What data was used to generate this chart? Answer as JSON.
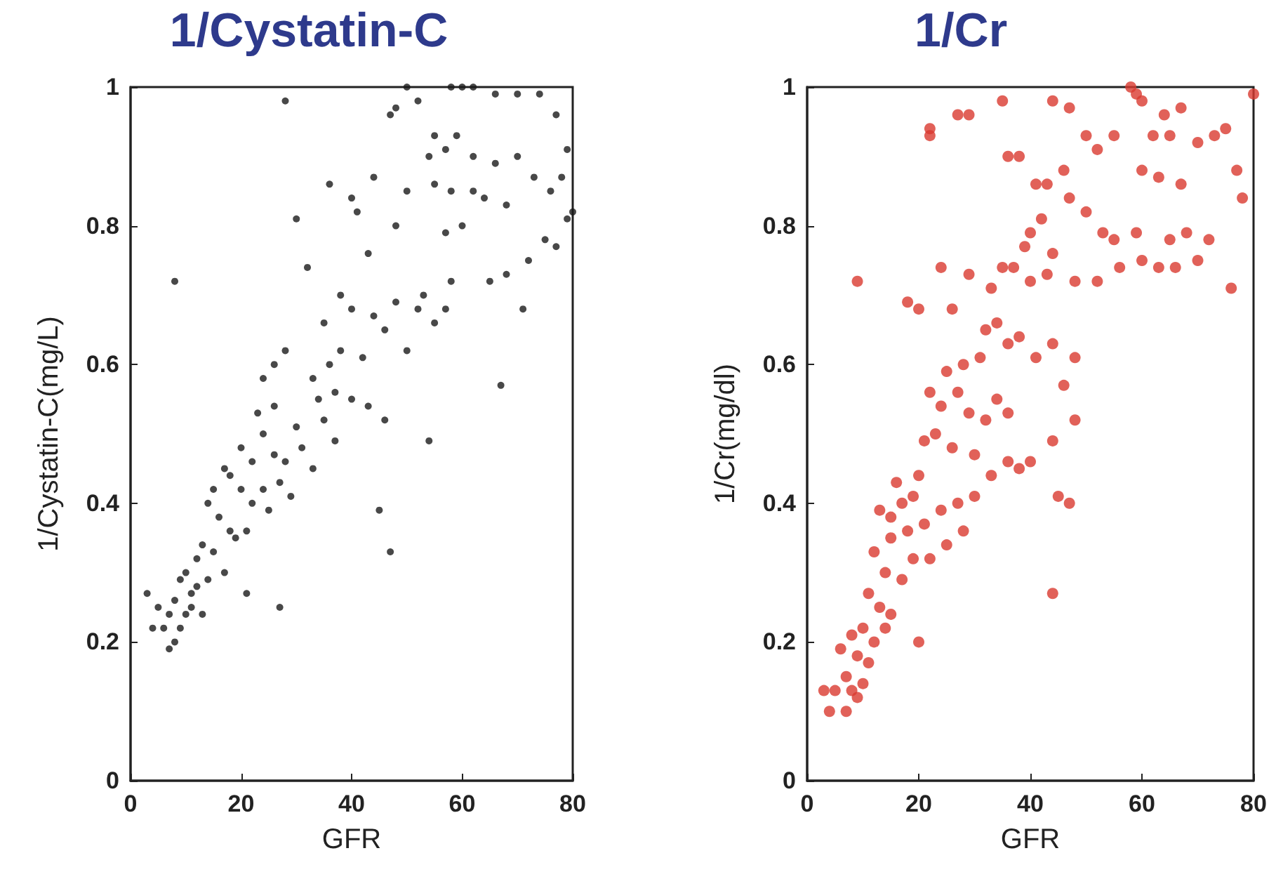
{
  "chart_data": [
    {
      "type": "scatter",
      "title": "1/Cystatin-C",
      "xlabel": "GFR",
      "ylabel": "1/Cystatin-C(mg/L)",
      "xlim": [
        0,
        80
      ],
      "ylim": [
        0,
        1
      ],
      "xticks": [
        0,
        20,
        40,
        60,
        80
      ],
      "yticks": [
        0,
        0.2,
        0.4,
        0.6,
        0.8,
        1
      ],
      "marker": "circle",
      "series": [
        {
          "color": "#1a1a1a",
          "x": [
            8,
            28,
            50,
            52,
            58,
            60,
            62,
            66,
            70,
            74,
            77,
            79,
            48,
            47,
            55,
            57,
            59,
            54,
            62,
            66,
            70,
            73,
            76,
            78,
            80,
            79,
            50,
            55,
            58,
            62,
            64,
            68,
            36,
            40,
            44,
            41,
            30,
            43,
            48,
            57,
            60,
            65,
            68,
            72,
            75,
            77,
            71,
            67,
            54,
            45,
            47,
            27,
            21,
            32,
            35,
            38,
            40,
            44,
            46,
            48,
            52,
            55,
            57,
            58,
            53,
            50,
            42,
            38,
            36,
            33,
            34,
            37,
            40,
            43,
            46,
            28,
            26,
            24,
            23,
            26,
            30,
            31,
            28,
            26,
            24,
            20,
            22,
            18,
            20,
            22,
            24,
            27,
            29,
            25,
            21,
            19,
            16,
            15,
            17,
            14,
            13,
            12,
            15,
            10,
            11,
            9,
            8,
            7,
            6,
            8,
            9,
            10,
            11,
            12,
            5,
            4,
            3,
            7,
            13,
            14,
            17,
            18,
            33,
            35,
            37
          ],
          "values": [
            0.72,
            0.98,
            1.0,
            0.98,
            1.0,
            1.0,
            1.0,
            0.99,
            0.99,
            0.99,
            0.96,
            0.91,
            0.97,
            0.96,
            0.93,
            0.91,
            0.93,
            0.9,
            0.9,
            0.89,
            0.9,
            0.87,
            0.85,
            0.87,
            0.82,
            0.81,
            0.85,
            0.86,
            0.85,
            0.85,
            0.84,
            0.83,
            0.86,
            0.84,
            0.87,
            0.82,
            0.81,
            0.76,
            0.8,
            0.79,
            0.8,
            0.72,
            0.73,
            0.75,
            0.78,
            0.77,
            0.68,
            0.57,
            0.49,
            0.39,
            0.33,
            0.25,
            0.27,
            0.74,
            0.66,
            0.7,
            0.68,
            0.67,
            0.65,
            0.69,
            0.68,
            0.66,
            0.68,
            0.72,
            0.7,
            0.62,
            0.61,
            0.62,
            0.6,
            0.58,
            0.55,
            0.56,
            0.55,
            0.54,
            0.52,
            0.62,
            0.6,
            0.58,
            0.53,
            0.54,
            0.51,
            0.48,
            0.46,
            0.47,
            0.5,
            0.48,
            0.46,
            0.44,
            0.42,
            0.4,
            0.42,
            0.43,
            0.41,
            0.39,
            0.36,
            0.35,
            0.38,
            0.42,
            0.45,
            0.4,
            0.34,
            0.32,
            0.33,
            0.3,
            0.27,
            0.29,
            0.26,
            0.24,
            0.22,
            0.2,
            0.22,
            0.24,
            0.25,
            0.28,
            0.25,
            0.22,
            0.27,
            0.19,
            0.24,
            0.29,
            0.3,
            0.36,
            0.45,
            0.52,
            0.49
          ]
        }
      ]
    },
    {
      "type": "scatter",
      "title": "1/Cr",
      "xlabel": "GFR",
      "ylabel": "1/Cr(mg/dl)",
      "xlim": [
        0,
        80
      ],
      "ylim": [
        0,
        1
      ],
      "xticks": [
        0,
        20,
        40,
        60,
        80
      ],
      "yticks": [
        0,
        0.2,
        0.4,
        0.6,
        0.8,
        1
      ],
      "marker": "circle",
      "series": [
        {
          "color": "#d93a30",
          "x": [
            9,
            58,
            59,
            80,
            44,
            35,
            27,
            22,
            22,
            29,
            47,
            60,
            64,
            67,
            55,
            50,
            52,
            62,
            65,
            70,
            73,
            75,
            36,
            38,
            43,
            41,
            46,
            60,
            63,
            67,
            77,
            78,
            47,
            50,
            53,
            55,
            59,
            65,
            68,
            72,
            56,
            60,
            63,
            66,
            70,
            76,
            48,
            52,
            40,
            42,
            44,
            39,
            35,
            37,
            40,
            43,
            33,
            29,
            24,
            18,
            20,
            26,
            32,
            34,
            36,
            38,
            41,
            44,
            48,
            46,
            48,
            31,
            28,
            25,
            22,
            24,
            27,
            29,
            32,
            34,
            36,
            21,
            23,
            26,
            30,
            33,
            36,
            38,
            40,
            44,
            45,
            44,
            47,
            20,
            19,
            17,
            15,
            13,
            18,
            21,
            24,
            27,
            28,
            25,
            22,
            15,
            12,
            14,
            17,
            19,
            11,
            13,
            15,
            10,
            12,
            8,
            9,
            11,
            6,
            7,
            8,
            9,
            5,
            3,
            4,
            7,
            10,
            14,
            20,
            30,
            16
          ],
          "values": [
            0.72,
            1.0,
            0.99,
            0.99,
            0.98,
            0.98,
            0.96,
            0.94,
            0.93,
            0.96,
            0.97,
            0.98,
            0.96,
            0.97,
            0.93,
            0.93,
            0.91,
            0.93,
            0.93,
            0.92,
            0.93,
            0.94,
            0.9,
            0.9,
            0.86,
            0.86,
            0.88,
            0.88,
            0.87,
            0.86,
            0.88,
            0.84,
            0.84,
            0.82,
            0.79,
            0.78,
            0.79,
            0.78,
            0.79,
            0.78,
            0.74,
            0.75,
            0.74,
            0.74,
            0.75,
            0.71,
            0.72,
            0.72,
            0.79,
            0.81,
            0.76,
            0.77,
            0.74,
            0.74,
            0.72,
            0.73,
            0.71,
            0.73,
            0.74,
            0.69,
            0.68,
            0.68,
            0.65,
            0.66,
            0.63,
            0.64,
            0.61,
            0.63,
            0.61,
            0.57,
            0.52,
            0.61,
            0.6,
            0.59,
            0.56,
            0.54,
            0.56,
            0.53,
            0.52,
            0.55,
            0.53,
            0.49,
            0.5,
            0.48,
            0.47,
            0.44,
            0.46,
            0.45,
            0.46,
            0.49,
            0.41,
            0.27,
            0.4,
            0.44,
            0.41,
            0.4,
            0.38,
            0.39,
            0.36,
            0.37,
            0.39,
            0.4,
            0.36,
            0.34,
            0.32,
            0.35,
            0.33,
            0.3,
            0.29,
            0.32,
            0.27,
            0.25,
            0.24,
            0.22,
            0.2,
            0.21,
            0.18,
            0.17,
            0.19,
            0.15,
            0.13,
            0.12,
            0.13,
            0.13,
            0.1,
            0.1,
            0.14,
            0.22,
            0.2,
            0.41,
            0.43
          ]
        }
      ]
    }
  ]
}
